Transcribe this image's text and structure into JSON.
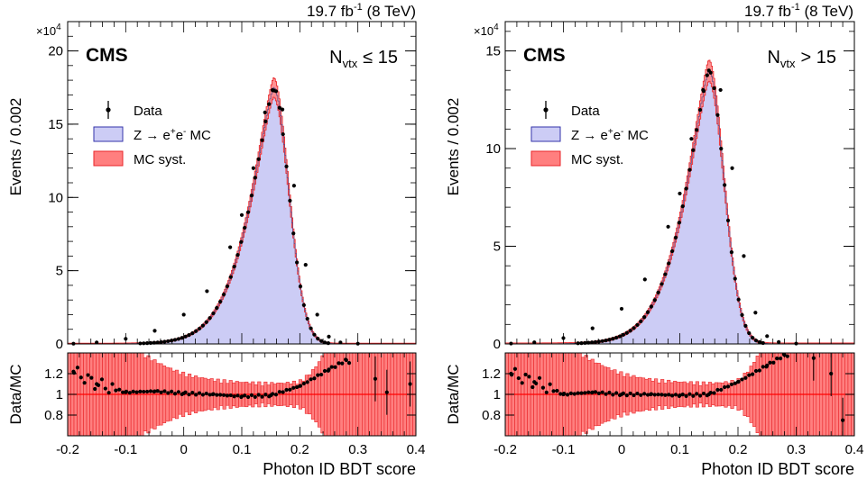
{
  "lumi_label": "19.7 fb",
  "lumi_sup": "-1",
  "lumi_energy": "(8 TeV)",
  "experiment": "CMS",
  "legend": {
    "data": "Data",
    "mc_prefix": "Z → e",
    "mc_sup1": "+",
    "mc_mid": "e",
    "mc_sup2": "-",
    "mc_suffix": " MC",
    "syst": "MC syst."
  },
  "colors": {
    "mc_fill": "#ccccf5",
    "mc_line": "#3333aa",
    "syst_fill": "#ff7f7f",
    "syst_line": "#e8262a",
    "data": "#000000",
    "ratio_line": "#ff0000"
  },
  "chart_data": [
    {
      "type": "histogram",
      "panel": "left",
      "category_main": "N",
      "category_sub": "vtx",
      "category_cond": "≤ 15",
      "xlabel": "Photon ID BDT score",
      "ylabel": "Events / 0.002",
      "ratio_ylabel": "Data/MC",
      "y_multiplier": "×10",
      "y_multiplier_exp": "4",
      "xlim": [
        -0.2,
        0.4
      ],
      "ylim": [
        0,
        22
      ],
      "ratio_ylim": [
        0.6,
        1.4
      ],
      "xticks": [
        "-0.2",
        "-0.1",
        "0",
        "0.1",
        "0.2",
        "0.3",
        "0.4"
      ],
      "yticks": [
        "0",
        "5",
        "10",
        "15",
        "20"
      ],
      "ratio_yticks": [
        "0.8",
        "1",
        "1.2"
      ],
      "peak_x": 0.155,
      "peak_y": 17.5,
      "data_points": [
        [
          -0.19,
          0.02
        ],
        [
          -0.15,
          0.1
        ],
        [
          -0.1,
          0.35
        ],
        [
          -0.05,
          0.9
        ],
        [
          0.0,
          2.0
        ],
        [
          0.04,
          3.6
        ],
        [
          0.08,
          6.6
        ],
        [
          0.1,
          8.8
        ],
        [
          0.12,
          12.0
        ],
        [
          0.14,
          15.8
        ],
        [
          0.155,
          17.3
        ],
        [
          0.17,
          16.0
        ],
        [
          0.19,
          10.8
        ],
        [
          0.21,
          5.4
        ],
        [
          0.23,
          2.0
        ],
        [
          0.25,
          0.5
        ],
        [
          0.27,
          0.1
        ],
        [
          0.3,
          0.02
        ]
      ],
      "ratio_points": [
        [
          -0.19,
          1.22
        ],
        [
          -0.15,
          1.1
        ],
        [
          -0.1,
          1.02
        ],
        [
          -0.05,
          1.03
        ],
        [
          0.0,
          1.01
        ],
        [
          0.05,
          1.0
        ],
        [
          0.1,
          0.98
        ],
        [
          0.15,
          0.99
        ],
        [
          0.2,
          1.08
        ],
        [
          0.25,
          1.24
        ],
        [
          0.28,
          1.33
        ],
        [
          0.33,
          1.15
        ],
        [
          0.35,
          1.02
        ],
        [
          0.39,
          1.1
        ]
      ]
    },
    {
      "type": "histogram",
      "panel": "right",
      "category_main": "N",
      "category_sub": "vtx",
      "category_cond": "> 15",
      "xlabel": "Photon ID BDT score",
      "ylabel": "Events / 0.002",
      "ratio_ylabel": "Data/MC",
      "y_multiplier": "×10",
      "y_multiplier_exp": "4",
      "xlim": [
        -0.2,
        0.4
      ],
      "ylim": [
        0,
        16.5
      ],
      "ratio_ylim": [
        0.6,
        1.4
      ],
      "xticks": [
        "-0.2",
        "-0.1",
        "0",
        "0.1",
        "0.2",
        "0.3",
        "0.4"
      ],
      "yticks": [
        "0",
        "5",
        "10",
        "15"
      ],
      "ratio_yticks": [
        "0.8",
        "1",
        "1.2"
      ],
      "peak_x": 0.15,
      "peak_y": 14.0,
      "data_points": [
        [
          -0.19,
          0.02
        ],
        [
          -0.15,
          0.08
        ],
        [
          -0.1,
          0.3
        ],
        [
          -0.05,
          0.8
        ],
        [
          0.0,
          1.8
        ],
        [
          0.04,
          3.3
        ],
        [
          0.08,
          6.0
        ],
        [
          0.1,
          7.7
        ],
        [
          0.12,
          10.5
        ],
        [
          0.14,
          13.0
        ],
        [
          0.15,
          14.0
        ],
        [
          0.17,
          13.0
        ],
        [
          0.19,
          9.0
        ],
        [
          0.21,
          4.5
        ],
        [
          0.23,
          1.6
        ],
        [
          0.25,
          0.4
        ],
        [
          0.27,
          0.1
        ],
        [
          0.3,
          0.02
        ]
      ],
      "ratio_points": [
        [
          -0.19,
          1.2
        ],
        [
          -0.15,
          1.12
        ],
        [
          -0.1,
          1.0
        ],
        [
          -0.05,
          1.02
        ],
        [
          0.0,
          1.0
        ],
        [
          0.05,
          1.0
        ],
        [
          0.1,
          0.99
        ],
        [
          0.15,
          1.0
        ],
        [
          0.2,
          1.12
        ],
        [
          0.25,
          1.28
        ],
        [
          0.28,
          1.38
        ],
        [
          0.33,
          1.35
        ],
        [
          0.36,
          1.2
        ],
        [
          0.38,
          0.75
        ]
      ]
    }
  ]
}
